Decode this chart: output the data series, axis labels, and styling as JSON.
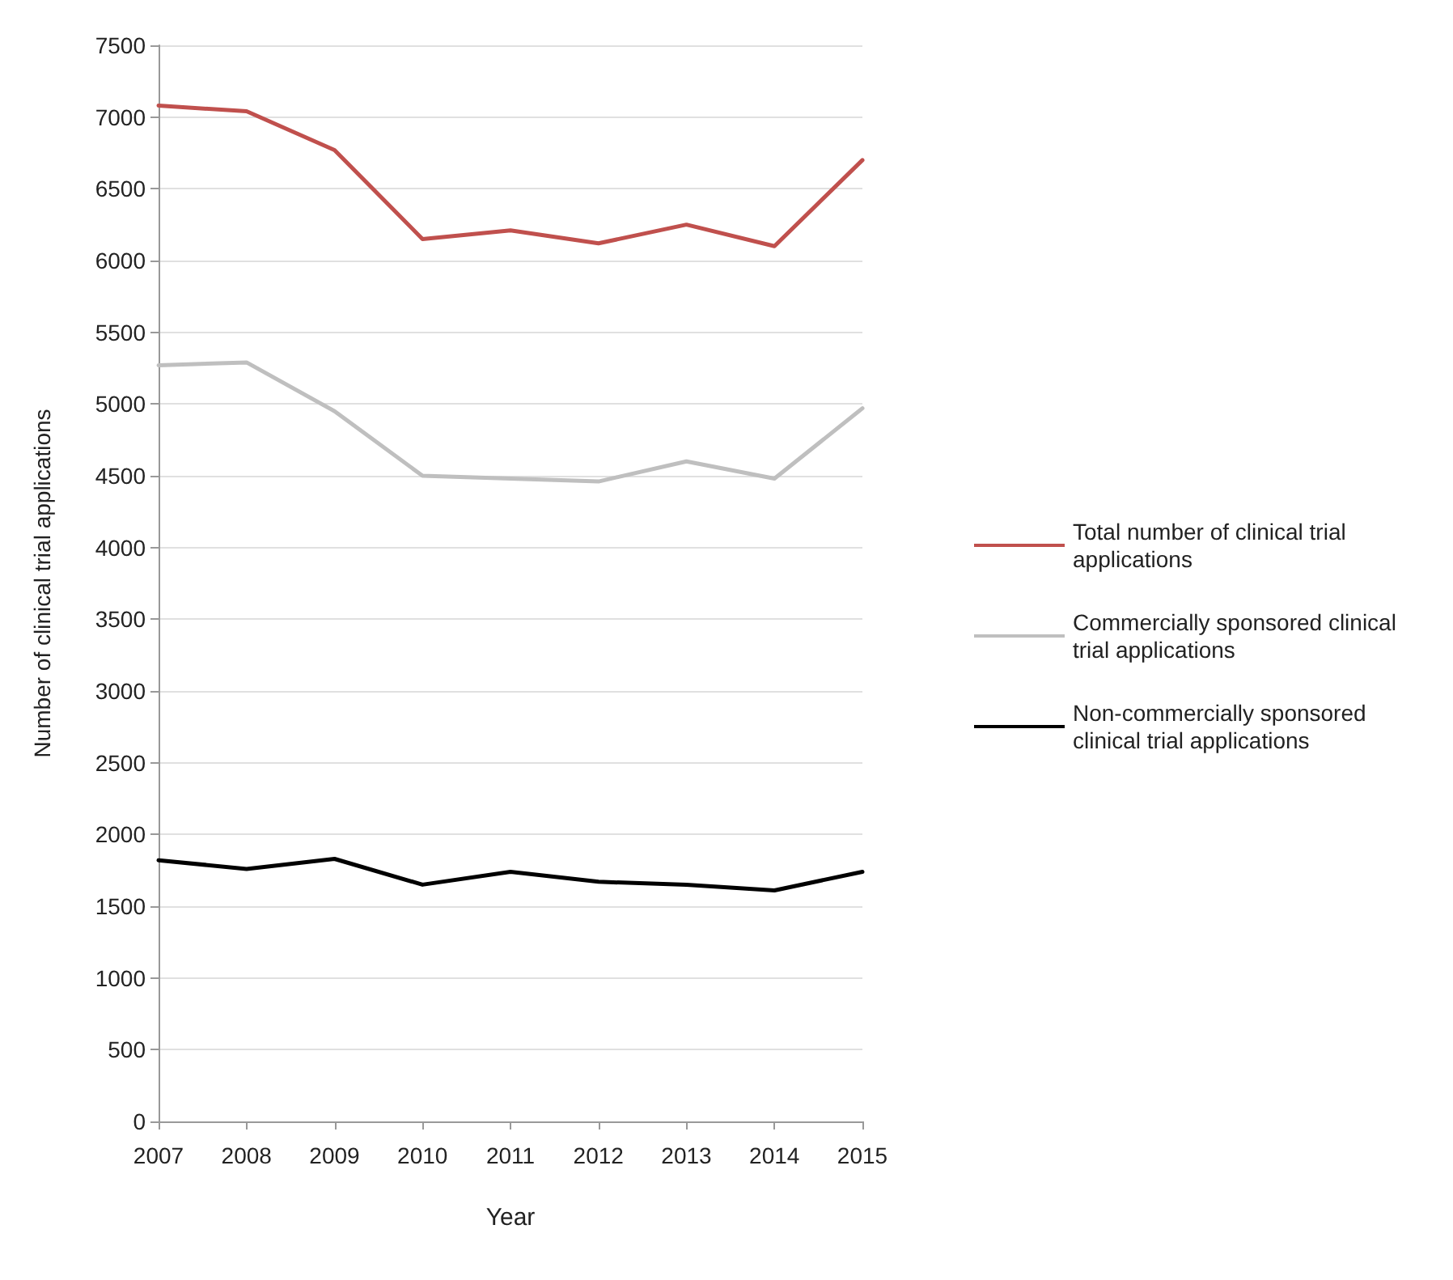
{
  "chart_data": {
    "type": "line",
    "xlabel": "Year",
    "ylabel": "Number of clinical trial applications",
    "categories": [
      "2007",
      "2008",
      "2009",
      "2010",
      "2011",
      "2012",
      "2013",
      "2014",
      "2015"
    ],
    "series": [
      {
        "name": "Total number of clinical trial applications",
        "color": "#c0504d",
        "values": [
          7080,
          7040,
          6770,
          6150,
          6210,
          6120,
          6250,
          6100,
          6700
        ]
      },
      {
        "name": "Commercially sponsored clinical trial applications",
        "color": "#bfbfbf",
        "values": [
          5270,
          5290,
          4950,
          4500,
          4480,
          4460,
          4600,
          4480,
          4970
        ]
      },
      {
        "name": "Non-commercially sponsored clinical trial applications",
        "color": "#000000",
        "values": [
          1820,
          1760,
          1830,
          1650,
          1740,
          1670,
          1650,
          1610,
          1740
        ]
      }
    ],
    "ylim": [
      0,
      7500
    ],
    "yticks": [
      0,
      500,
      1000,
      1500,
      2000,
      2500,
      3000,
      3500,
      4000,
      4500,
      5000,
      5500,
      6000,
      6500,
      7000,
      7500
    ],
    "grid": "y",
    "legend": "right",
    "marker": "none",
    "line_style": "solid"
  }
}
